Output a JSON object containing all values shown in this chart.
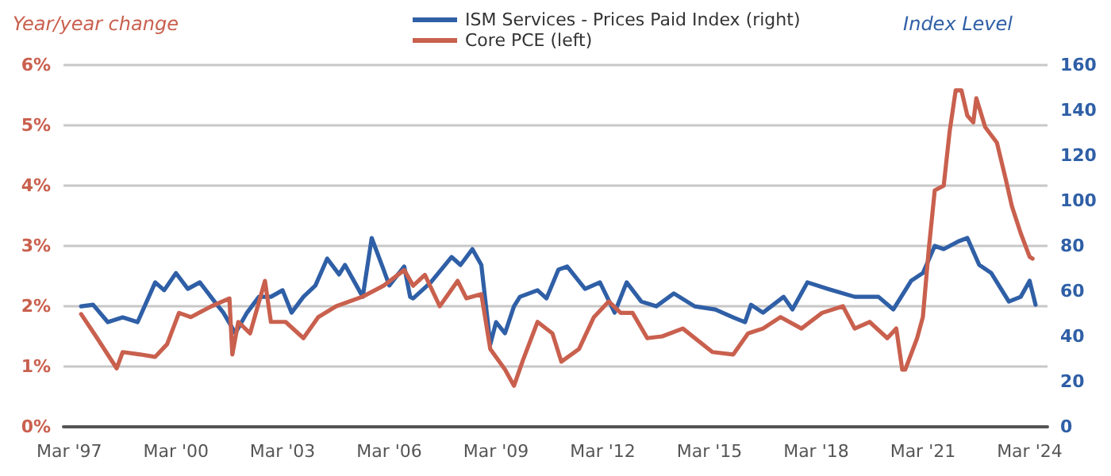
{
  "chart_data": {
    "type": "line",
    "ylabel": "Year/year change",
    "y2label": "Index Level",
    "xlim": [
      "1997-01",
      "2024-09"
    ],
    "xticks": [
      {
        "value": "1997-03",
        "label": "Mar '97"
      },
      {
        "value": "2000-03",
        "label": "Mar '00"
      },
      {
        "value": "2003-03",
        "label": "Mar '03"
      },
      {
        "value": "2006-03",
        "label": "Mar '06"
      },
      {
        "value": "2009-03",
        "label": "Mar '09"
      },
      {
        "value": "2012-03",
        "label": "Mar '12"
      },
      {
        "value": "2015-03",
        "label": "Mar '15"
      },
      {
        "value": "2018-03",
        "label": "Mar '18"
      },
      {
        "value": "2021-03",
        "label": "Mar '21"
      },
      {
        "value": "2024-03",
        "label": "Mar '24"
      }
    ],
    "ylim": [
      0,
      6
    ],
    "yticks": [
      {
        "value": 0,
        "label": "0%"
      },
      {
        "value": 1,
        "label": "1%"
      },
      {
        "value": 2,
        "label": "2%"
      },
      {
        "value": 3,
        "label": "3%"
      },
      {
        "value": 4,
        "label": "4%"
      },
      {
        "value": 5,
        "label": "5%"
      },
      {
        "value": 6,
        "label": "6%"
      }
    ],
    "y2lim": [
      0,
      160
    ],
    "y2ticks": [
      0,
      20,
      40,
      60,
      80,
      100,
      120,
      140,
      160
    ],
    "grid": "y",
    "legend": "top",
    "marker": "none",
    "line_style": "solid",
    "series": [
      {
        "name": "ISM Services - Prices Paid Index (right)",
        "color": "#2f5fa6",
        "axis": "y2",
        "x": [
          "1997-07",
          "1997-11",
          "1998-04",
          "1998-09",
          "1999-02",
          "1999-08",
          "1999-11",
          "2000-03",
          "2000-07",
          "2000-11",
          "2001-04",
          "2001-07",
          "2001-11",
          "2002-03",
          "2002-07",
          "2002-11",
          "2003-03",
          "2003-06",
          "2003-10",
          "2004-02",
          "2004-06",
          "2004-10",
          "2004-12",
          "2005-06",
          "2005-09",
          "2006-01",
          "2006-03",
          "2006-08",
          "2006-10",
          "2006-11",
          "2007-05",
          "2007-12",
          "2008-03",
          "2008-07",
          "2008-10",
          "2009-01",
          "2009-03",
          "2009-06",
          "2009-09",
          "2009-11",
          "2010-05",
          "2010-08",
          "2010-12",
          "2011-03",
          "2011-09",
          "2012-02",
          "2012-07",
          "2012-11",
          "2013-04",
          "2013-09",
          "2014-03",
          "2014-10",
          "2015-05",
          "2015-11",
          "2016-03",
          "2016-05",
          "2016-09",
          "2017-04",
          "2017-07",
          "2017-12",
          "2018-07",
          "2019-04",
          "2019-12",
          "2020-05",
          "2020-11",
          "2021-03",
          "2021-07",
          "2021-10",
          "2022-03",
          "2022-06",
          "2022-10",
          "2023-02",
          "2023-08",
          "2023-12",
          "2024-03",
          "2024-05"
        ],
        "values": [
          53.3,
          54,
          46.3,
          48.4,
          46.3,
          63.9,
          60.4,
          68,
          61,
          63.9,
          55.4,
          50.5,
          41.4,
          50.5,
          57.5,
          57.5,
          60.4,
          50.5,
          57.5,
          62.5,
          74.4,
          67.4,
          71.6,
          57.5,
          83.5,
          69.5,
          62.5,
          70.9,
          57.5,
          56.8,
          63.9,
          75.1,
          71.6,
          78.6,
          71.6,
          36.5,
          46.3,
          41.4,
          53.3,
          57.5,
          60.4,
          56.8,
          69.5,
          70.9,
          61,
          63.9,
          50.5,
          63.9,
          55.4,
          53.3,
          59,
          53.3,
          51.9,
          48.4,
          46.3,
          54,
          50.5,
          57.5,
          51.9,
          63.9,
          61,
          57.5,
          57.5,
          51.9,
          64.6,
          68,
          80,
          78.6,
          82,
          83.5,
          71.6,
          68,
          55.4,
          57.5,
          64.6,
          54
        ]
      },
      {
        "name": "Core PCE (left)",
        "color": "#c9604e",
        "axis": "y",
        "x": [
          "1997-07",
          "1997-12",
          "1998-07",
          "1998-09",
          "1999-03",
          "1999-08",
          "1999-12",
          "2000-04",
          "2000-08",
          "2001-03",
          "2001-09",
          "2001-10",
          "2001-12",
          "2002-04",
          "2002-09",
          "2002-11",
          "2003-04",
          "2003-10",
          "2004-03",
          "2004-09",
          "2005-06",
          "2006-01",
          "2006-08",
          "2006-11",
          "2007-03",
          "2007-08",
          "2008-02",
          "2008-05",
          "2008-10",
          "2009-01",
          "2009-06",
          "2009-09",
          "2009-12",
          "2010-05",
          "2010-10",
          "2011-01",
          "2011-07",
          "2011-12",
          "2012-05",
          "2012-09",
          "2013-01",
          "2013-06",
          "2013-11",
          "2014-06",
          "2015-04",
          "2015-11",
          "2016-04",
          "2016-09",
          "2017-03",
          "2017-10",
          "2018-05",
          "2018-12",
          "2019-04",
          "2019-09",
          "2020-03",
          "2020-06",
          "2020-08",
          "2020-09",
          "2021-01",
          "2021-03",
          "2021-05",
          "2021-07",
          "2021-10",
          "2021-12",
          "2022-02",
          "2022-04",
          "2022-06",
          "2022-08",
          "2022-09",
          "2022-12",
          "2023-04",
          "2023-07",
          "2023-09",
          "2023-12",
          "2024-03",
          "2024-04"
        ],
        "values": [
          1.87,
          1.5,
          0.97,
          1.24,
          1.2,
          1.16,
          1.37,
          1.89,
          1.82,
          2.0,
          2.13,
          1.2,
          1.74,
          1.55,
          2.42,
          1.74,
          1.74,
          1.47,
          1.82,
          2.0,
          2.16,
          2.34,
          2.6,
          2.34,
          2.52,
          2.0,
          2.42,
          2.13,
          2.2,
          1.29,
          0.95,
          0.68,
          1.1,
          1.74,
          1.55,
          1.08,
          1.29,
          1.82,
          2.08,
          1.89,
          1.89,
          1.47,
          1.5,
          1.63,
          1.24,
          1.2,
          1.55,
          1.63,
          1.82,
          1.63,
          1.89,
          2.0,
          1.63,
          1.74,
          1.47,
          1.63,
          0.95,
          0.95,
          1.47,
          1.82,
          2.95,
          3.92,
          4.0,
          4.9,
          5.58,
          5.58,
          5.16,
          5.05,
          5.45,
          4.97,
          4.71,
          4.1,
          3.66,
          3.21,
          2.82,
          2.79
        ]
      }
    ]
  }
}
